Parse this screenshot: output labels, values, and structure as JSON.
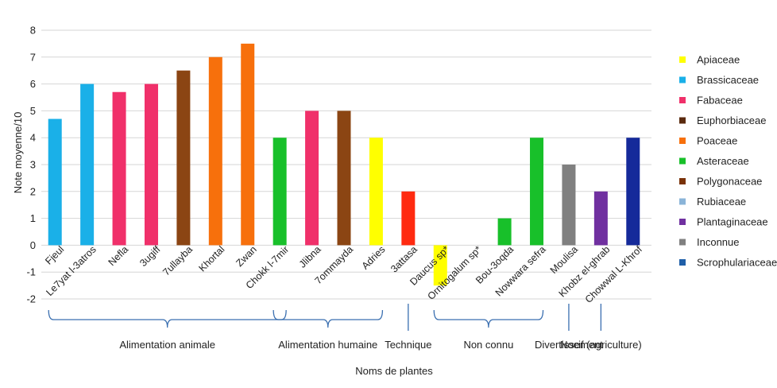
{
  "chart_data": {
    "type": "bar",
    "xlabel": "Noms de plantes",
    "ylabel": "Note moyenne/10",
    "ylim": [
      -2,
      8
    ],
    "yticks": [
      -2,
      -1,
      0,
      1,
      2,
      3,
      4,
      5,
      6,
      7,
      8
    ],
    "grid": "horizontal",
    "legend_position": "right",
    "legend": [
      {
        "name": "Apiaceae",
        "color": "#ffff00"
      },
      {
        "name": "Brassicaceae",
        "color": "#1ab0e8"
      },
      {
        "name": "Fabaceae",
        "color": "#f0306a"
      },
      {
        "name": "Euphorbiaceae",
        "color": "#5a2a0e"
      },
      {
        "name": "Poaceae",
        "color": "#f7700c"
      },
      {
        "name": "Asteraceae",
        "color": "#18c02a"
      },
      {
        "name": "Polygonaceae",
        "color": "#7a3208"
      },
      {
        "name": "Rubiaceae",
        "color": "#8ab4d8"
      },
      {
        "name": "Plantaginaceae",
        "color": "#7030a0"
      },
      {
        "name": "Inconnue",
        "color": "#808080"
      },
      {
        "name": "Scrophulariaceae",
        "color": "#1f5fa8"
      }
    ],
    "bars": [
      {
        "category": "Fjeul",
        "value": 4.7,
        "color": "#1ab0e8"
      },
      {
        "category": "Le7yat l-3atros",
        "value": 6.0,
        "color": "#1ab0e8"
      },
      {
        "category": "Nefla",
        "value": 5.7,
        "color": "#f0306a"
      },
      {
        "category": "3ugiff",
        "value": 6.0,
        "color": "#f0306a"
      },
      {
        "category": "7ullayba",
        "value": 6.5,
        "color": "#8b4513"
      },
      {
        "category": "Khortal",
        "value": 7.0,
        "color": "#f7700c"
      },
      {
        "category": "Zwan",
        "value": 7.5,
        "color": "#f7700c"
      },
      {
        "category": "Chokk l-7mir",
        "value": 4.0,
        "color": "#18c02a"
      },
      {
        "category": "Jlibna",
        "value": 5.0,
        "color": "#f0306a"
      },
      {
        "category": "7ommayda",
        "value": 5.0,
        "color": "#8b4513"
      },
      {
        "category": "Adries",
        "value": 4.0,
        "color": "#ffff00"
      },
      {
        "category": "3attasa",
        "value": 2.0,
        "color": "#ff2a10"
      },
      {
        "category": "Daucus sp*",
        "value": -1.5,
        "color": "#ffff00"
      },
      {
        "category": "Ornitogalum sp*",
        "value": 0.0,
        "color": "#ffffff"
      },
      {
        "category": "Bou-3oqda",
        "value": 1.0,
        "color": "#18c02a"
      },
      {
        "category": "Nowwara sefra",
        "value": 4.0,
        "color": "#18c02a"
      },
      {
        "category": "Moulisa",
        "value": 3.0,
        "color": "#808080"
      },
      {
        "category": "Khobz el-ghrab",
        "value": 2.0,
        "color": "#7030a0"
      },
      {
        "category": "Chowwal L-Khrof",
        "value": 4.0,
        "color": "#152a9a"
      }
    ],
    "groups": [
      {
        "label": "Alimentation animale",
        "start": 0,
        "end": 7
      },
      {
        "label": "Alimentation humaine",
        "start": 7,
        "end": 10
      },
      {
        "label": "Technique",
        "start": 11,
        "end": 11
      },
      {
        "label": "Non connu",
        "start": 12,
        "end": 15
      },
      {
        "label": "Divertissement",
        "start": 16,
        "end": 16
      },
      {
        "label": "Nocif (agriculture)",
        "start": 17,
        "end": 17
      }
    ]
  }
}
